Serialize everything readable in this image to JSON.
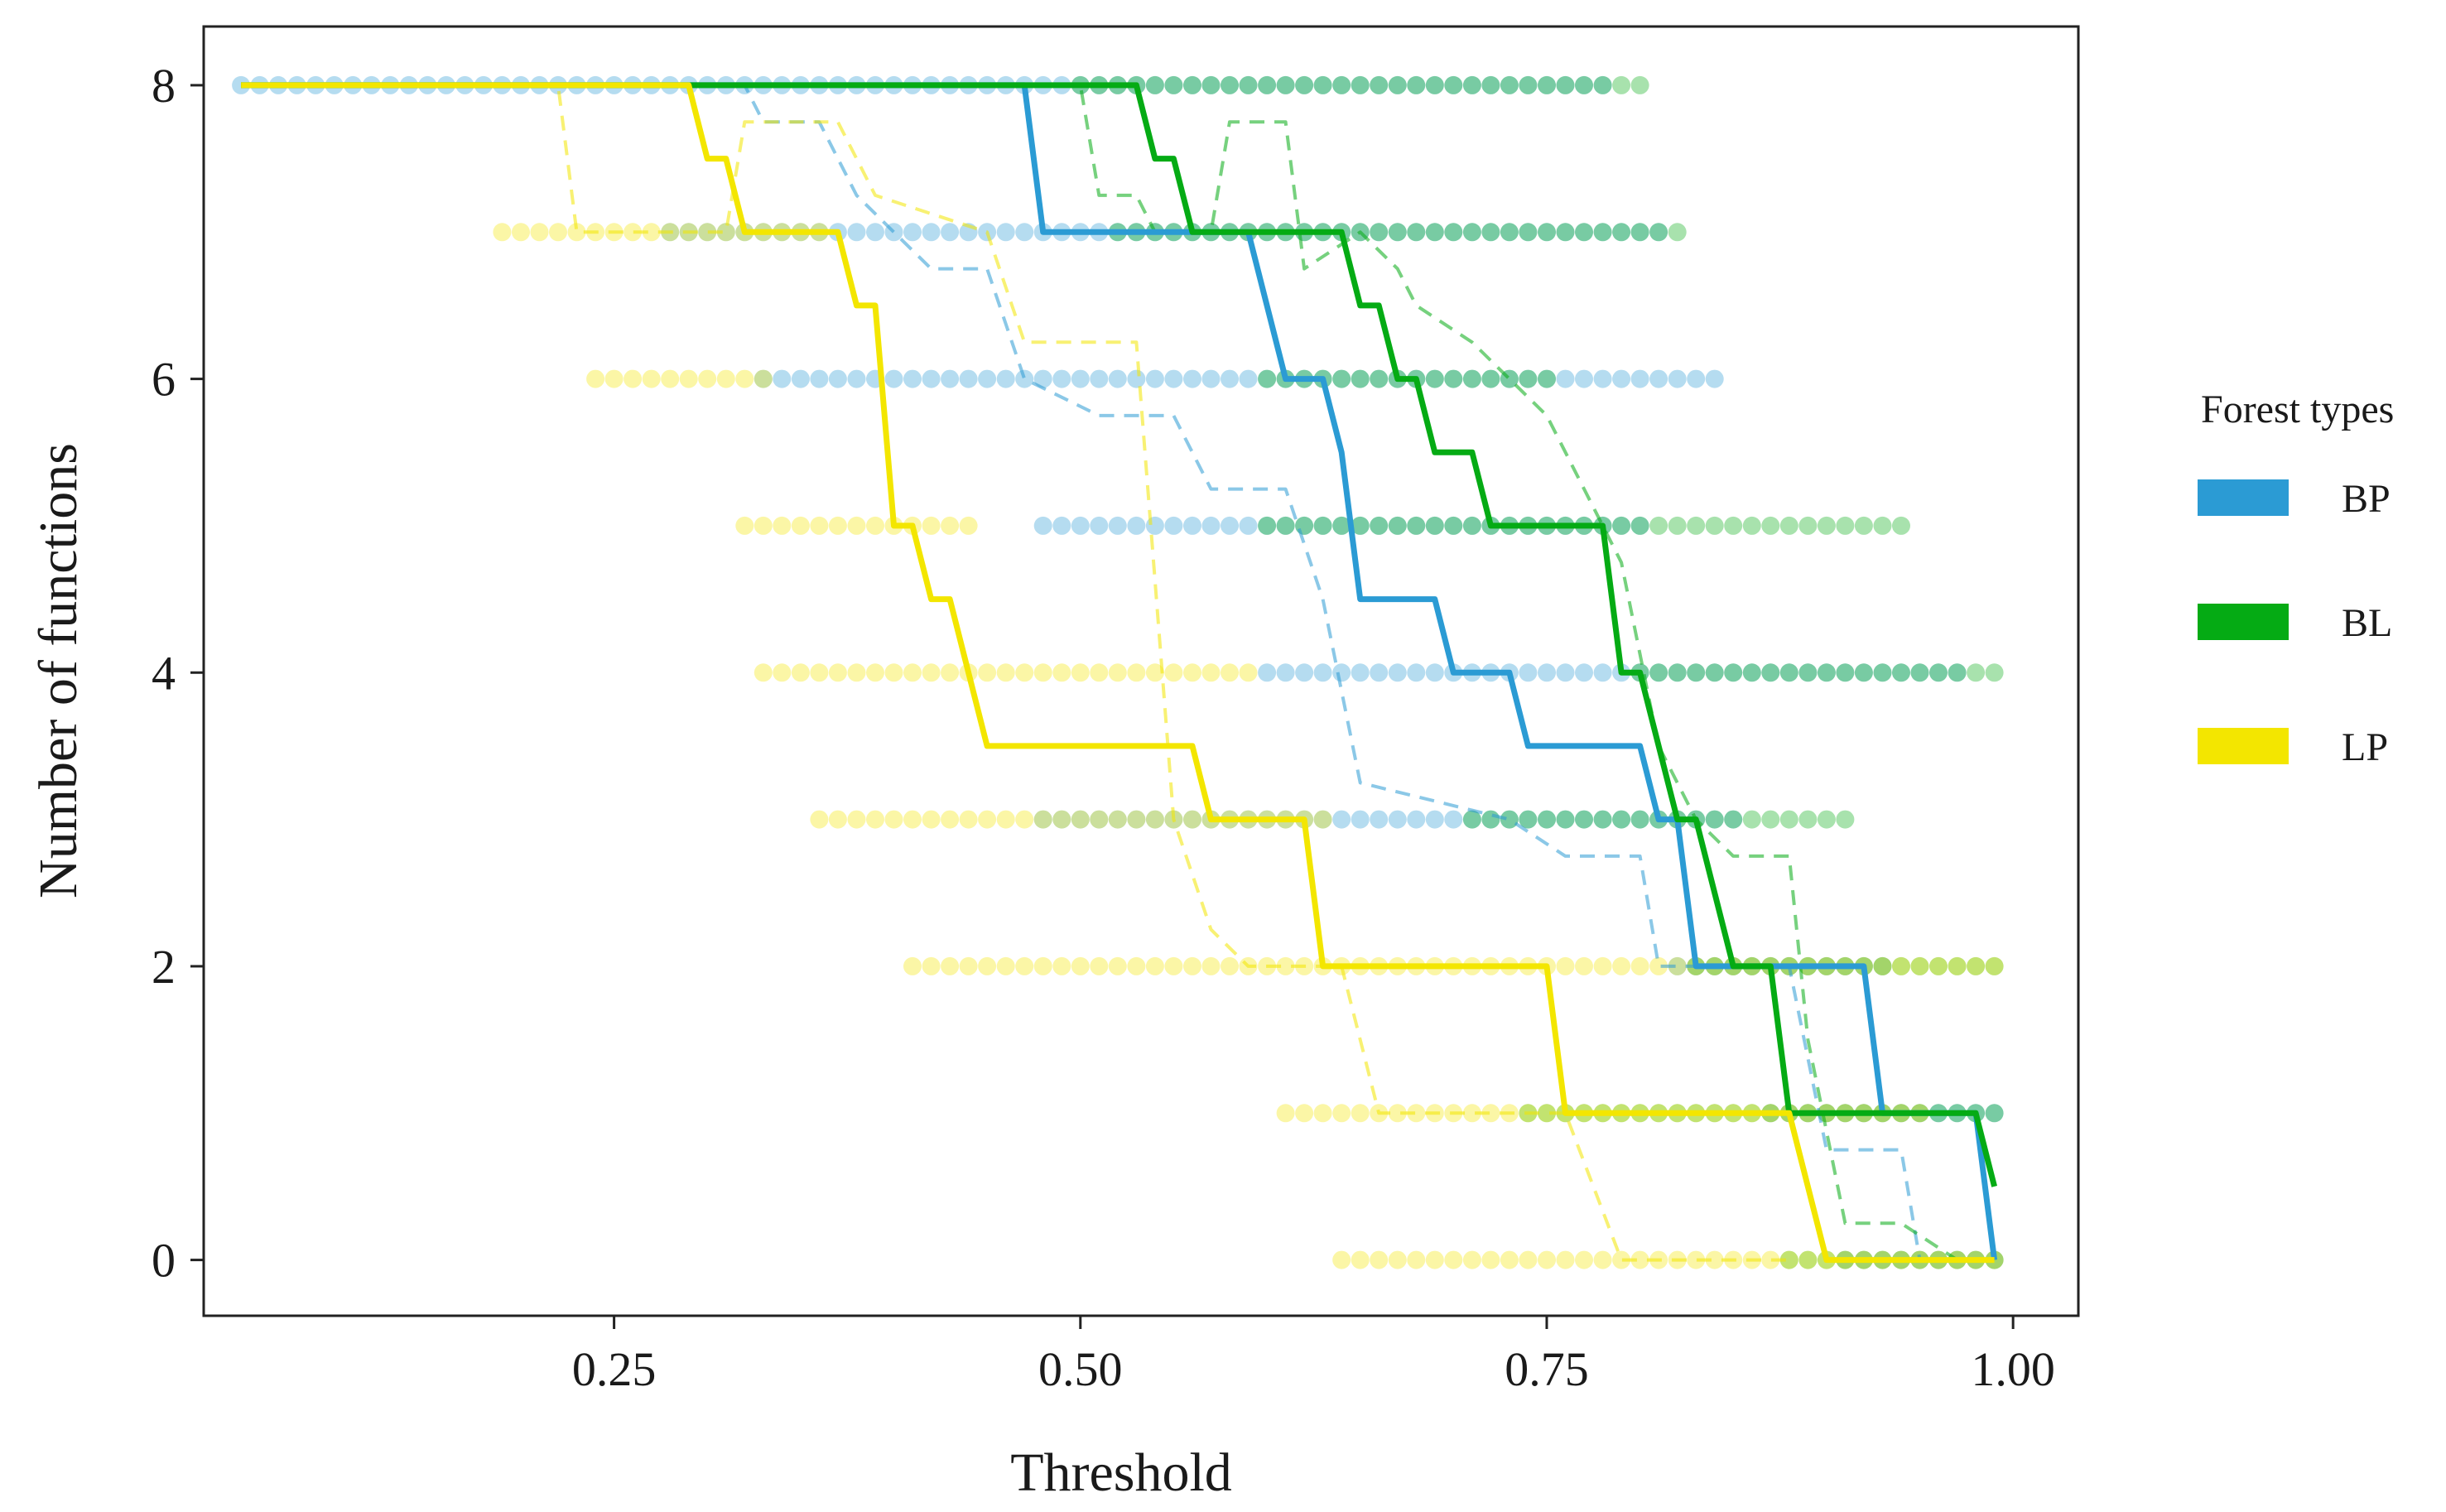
{
  "chart_data": {
    "type": "line",
    "title": "",
    "xlabel": "Threshold",
    "ylabel": "Number of functions",
    "xlim": [
      0.03,
      1.035
    ],
    "ylim": [
      -0.38,
      8.4
    ],
    "x_ticks": [
      0.25,
      0.5,
      0.75,
      1.0
    ],
    "x_tick_labels": [
      "0.25",
      "0.50",
      "0.75",
      "1.00"
    ],
    "y_ticks": [
      0,
      2,
      4,
      6,
      8
    ],
    "y_tick_labels": [
      "0",
      "2",
      "4",
      "6",
      "8"
    ],
    "grid": false,
    "legend": {
      "title": "Forest types",
      "position": "right",
      "entries": [
        {
          "label": "BP",
          "color": "#2b9bd4"
        },
        {
          "label": "BL",
          "color": "#05ab14"
        },
        {
          "label": "LP",
          "color": "#f3e600"
        }
      ]
    },
    "series": [
      {
        "name": "BP",
        "color": "#2b9bd4",
        "line": [
          [
            0.05,
            8
          ],
          [
            0.47,
            8
          ],
          [
            0.48,
            7
          ],
          [
            0.59,
            7
          ],
          [
            0.61,
            6
          ],
          [
            0.63,
            6
          ],
          [
            0.64,
            5.5
          ],
          [
            0.65,
            4.5
          ],
          [
            0.69,
            4.5
          ],
          [
            0.7,
            4
          ],
          [
            0.73,
            4
          ],
          [
            0.74,
            3.5
          ],
          [
            0.8,
            3.5
          ],
          [
            0.81,
            3
          ],
          [
            0.82,
            3
          ],
          [
            0.83,
            2
          ],
          [
            0.92,
            2
          ],
          [
            0.93,
            1
          ],
          [
            0.97,
            1
          ],
          [
            0.98,
            1
          ],
          [
            0.99,
            0
          ]
        ],
        "dashed": [
          [
            0.05,
            8
          ],
          [
            0.32,
            8
          ],
          [
            0.33,
            7.75
          ],
          [
            0.36,
            7.75
          ],
          [
            0.38,
            7.25
          ],
          [
            0.4,
            7
          ],
          [
            0.42,
            6.75
          ],
          [
            0.45,
            6.75
          ],
          [
            0.47,
            6
          ],
          [
            0.51,
            5.75
          ],
          [
            0.55,
            5.75
          ],
          [
            0.57,
            5.25
          ],
          [
            0.61,
            5.25
          ],
          [
            0.63,
            4.5
          ],
          [
            0.65,
            3.25
          ],
          [
            0.73,
            3
          ],
          [
            0.76,
            2.75
          ],
          [
            0.8,
            2.75
          ],
          [
            0.81,
            2
          ],
          [
            0.88,
            2
          ],
          [
            0.9,
            0.75
          ],
          [
            0.94,
            0.75
          ],
          [
            0.95,
            0
          ]
        ],
        "point_levels": [
          {
            "y": 8,
            "x_range": [
              0.05,
              0.78
            ]
          },
          {
            "y": 7,
            "x_range": [
              0.28,
              0.81
            ]
          },
          {
            "y": 6,
            "x_range": [
              0.33,
              0.84
            ]
          },
          {
            "y": 5,
            "x_range": [
              0.48,
              0.8
            ]
          },
          {
            "y": 4,
            "x_range": [
              0.6,
              0.97
            ]
          },
          {
            "y": 3,
            "x_range": [
              0.48,
              0.85
            ]
          },
          {
            "y": 2,
            "x_range": [
              0.82,
              0.93
            ]
          },
          {
            "y": 1,
            "x_range": [
              0.87,
              0.99
            ]
          },
          {
            "y": 0,
            "x_range": [
              0.91,
              0.99
            ]
          }
        ]
      },
      {
        "name": "BL",
        "color": "#05ab14",
        "line": [
          [
            0.05,
            8
          ],
          [
            0.53,
            8
          ],
          [
            0.54,
            7.5
          ],
          [
            0.55,
            7.5
          ],
          [
            0.56,
            7
          ],
          [
            0.63,
            7
          ],
          [
            0.64,
            7
          ],
          [
            0.65,
            6.5
          ],
          [
            0.66,
            6.5
          ],
          [
            0.67,
            6
          ],
          [
            0.68,
            6
          ],
          [
            0.69,
            5.5
          ],
          [
            0.71,
            5.5
          ],
          [
            0.72,
            5
          ],
          [
            0.78,
            5
          ],
          [
            0.79,
            4
          ],
          [
            0.8,
            4
          ],
          [
            0.82,
            3
          ],
          [
            0.83,
            3
          ],
          [
            0.85,
            2
          ],
          [
            0.87,
            2
          ],
          [
            0.88,
            1
          ],
          [
            0.97,
            1
          ],
          [
            0.98,
            1
          ],
          [
            0.99,
            0.5
          ]
        ],
        "dashed": [
          [
            0.05,
            8
          ],
          [
            0.5,
            8
          ],
          [
            0.51,
            7.25
          ],
          [
            0.53,
            7.25
          ],
          [
            0.54,
            7
          ],
          [
            0.57,
            7
          ],
          [
            0.58,
            7.75
          ],
          [
            0.61,
            7.75
          ],
          [
            0.62,
            6.75
          ],
          [
            0.65,
            7
          ],
          [
            0.67,
            6.75
          ],
          [
            0.68,
            6.5
          ],
          [
            0.71,
            6.25
          ],
          [
            0.75,
            5.75
          ],
          [
            0.78,
            5
          ],
          [
            0.79,
            4.75
          ],
          [
            0.81,
            3.5
          ],
          [
            0.83,
            3
          ],
          [
            0.85,
            2.75
          ],
          [
            0.88,
            2.75
          ],
          [
            0.89,
            1.5
          ],
          [
            0.91,
            0.25
          ],
          [
            0.94,
            0.25
          ],
          [
            0.97,
            0
          ]
        ],
        "point_levels": [
          {
            "y": 8,
            "x_range": [
              0.5,
              0.8
            ]
          },
          {
            "y": 7,
            "x_range": [
              0.52,
              0.82
            ]
          },
          {
            "y": 6,
            "x_range": [
              0.6,
              0.75
            ]
          },
          {
            "y": 5,
            "x_range": [
              0.6,
              0.94
            ]
          },
          {
            "y": 4,
            "x_range": [
              0.8,
              0.99
            ]
          },
          {
            "y": 3,
            "x_range": [
              0.71,
              0.91
            ]
          },
          {
            "y": 2,
            "x_range": [
              0.83,
              0.99
            ]
          },
          {
            "y": 1,
            "x_range": [
              0.74,
              0.99
            ]
          },
          {
            "y": 0,
            "x_range": [
              0.88,
              0.99
            ]
          }
        ]
      },
      {
        "name": "LP",
        "color": "#f3e600",
        "line": [
          [
            0.05,
            8
          ],
          [
            0.29,
            8
          ],
          [
            0.3,
            7.5
          ],
          [
            0.31,
            7.5
          ],
          [
            0.32,
            7
          ],
          [
            0.37,
            7
          ],
          [
            0.38,
            6.5
          ],
          [
            0.39,
            6.5
          ],
          [
            0.4,
            5
          ],
          [
            0.41,
            5
          ],
          [
            0.42,
            4.5
          ],
          [
            0.43,
            4.5
          ],
          [
            0.45,
            3.5
          ],
          [
            0.56,
            3.5
          ],
          [
            0.57,
            3
          ],
          [
            0.62,
            3
          ],
          [
            0.63,
            2
          ],
          [
            0.75,
            2
          ],
          [
            0.76,
            1
          ],
          [
            0.88,
            1
          ],
          [
            0.9,
            0
          ],
          [
            0.99,
            0
          ]
        ],
        "dashed": [
          [
            0.05,
            8
          ],
          [
            0.22,
            8
          ],
          [
            0.23,
            7
          ],
          [
            0.31,
            7
          ],
          [
            0.32,
            7.75
          ],
          [
            0.37,
            7.75
          ],
          [
            0.39,
            7.25
          ],
          [
            0.45,
            7
          ],
          [
            0.47,
            6.25
          ],
          [
            0.53,
            6.25
          ],
          [
            0.55,
            3
          ],
          [
            0.57,
            2.25
          ],
          [
            0.59,
            2
          ],
          [
            0.64,
            2
          ],
          [
            0.66,
            1
          ],
          [
            0.76,
            1
          ],
          [
            0.79,
            0
          ],
          [
            0.88,
            0
          ]
        ],
        "point_levels": [
          {
            "y": 7,
            "x_range": [
              0.19,
              0.36
            ]
          },
          {
            "y": 6,
            "x_range": [
              0.24,
              0.33
            ]
          },
          {
            "y": 5,
            "x_range": [
              0.32,
              0.44
            ]
          },
          {
            "y": 4,
            "x_range": [
              0.33,
              0.59
            ]
          },
          {
            "y": 3,
            "x_range": [
              0.36,
              0.63
            ]
          },
          {
            "y": 2,
            "x_range": [
              0.41,
              0.99
            ]
          },
          {
            "y": 1,
            "x_range": [
              0.61,
              0.95
            ]
          },
          {
            "y": 0,
            "x_range": [
              0.64,
              0.99
            ]
          }
        ]
      }
    ]
  }
}
